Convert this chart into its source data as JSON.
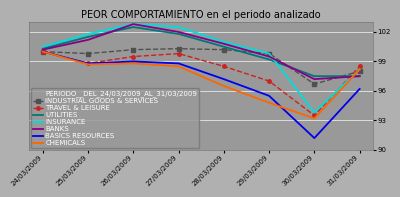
{
  "title": "PEOR COMPORTAMIENTO en el periodo analizado",
  "legend_title": "PERIODO__DEL_24/03/2009_AL_31/03/2009",
  "dates": [
    "24/03/2009",
    "25/03/2009",
    "26/03/2009",
    "27/03/2009",
    "28/03/2009",
    "29/03/2009",
    "30/03/2009",
    "31/03/2009"
  ],
  "series": [
    {
      "name": "INDUSTRIAL GOODS & SERVICES",
      "color": "#505050",
      "style": "--",
      "marker": "s",
      "markersize": 2.5,
      "linewidth": 1.0,
      "values": [
        100.0,
        99.8,
        100.2,
        100.3,
        100.2,
        99.8,
        96.7,
        98.0
      ]
    },
    {
      "name": "TRAVEL & LEISURE",
      "color": "#cc2222",
      "style": "--",
      "marker": "o",
      "markersize": 2.5,
      "linewidth": 1.0,
      "values": [
        100.0,
        98.8,
        99.5,
        99.8,
        98.5,
        97.0,
        93.5,
        98.5
      ]
    },
    {
      "name": "UTILITIES",
      "color": "#007777",
      "style": "-",
      "marker": null,
      "markersize": 0,
      "linewidth": 1.3,
      "values": [
        100.3,
        101.5,
        102.5,
        101.8,
        100.5,
        99.2,
        97.5,
        97.5
      ]
    },
    {
      "name": "INSURANCE",
      "color": "#00dddd",
      "style": "-",
      "marker": null,
      "markersize": 0,
      "linewidth": 1.3,
      "values": [
        100.5,
        101.8,
        102.8,
        102.5,
        101.0,
        99.8,
        93.8,
        98.2
      ]
    },
    {
      "name": "BANKS",
      "color": "#880088",
      "style": "-",
      "marker": null,
      "markersize": 0,
      "linewidth": 1.3,
      "values": [
        100.2,
        101.2,
        102.8,
        102.0,
        100.8,
        99.5,
        97.2,
        97.5
      ]
    },
    {
      "name": "BASICS RESOURCES",
      "color": "#0000ee",
      "style": "-",
      "marker": null,
      "markersize": 0,
      "linewidth": 1.3,
      "values": [
        100.0,
        98.8,
        99.0,
        98.8,
        97.2,
        95.5,
        91.2,
        96.2
      ]
    },
    {
      "name": "CHEMICALS",
      "color": "#ff6600",
      "style": "-",
      "marker": null,
      "markersize": 0,
      "linewidth": 1.3,
      "values": [
        100.0,
        98.7,
        98.8,
        98.5,
        96.5,
        94.8,
        93.2,
        98.2
      ]
    }
  ],
  "ylim": [
    90,
    103
  ],
  "yticks": [
    90,
    93,
    96,
    99,
    102
  ],
  "bg_color": "#b0b0b0",
  "plot_bg_color": "#999999",
  "grid_color": "#dddddd",
  "title_fontsize": 7,
  "tick_fontsize": 5,
  "legend_fontsize": 5
}
